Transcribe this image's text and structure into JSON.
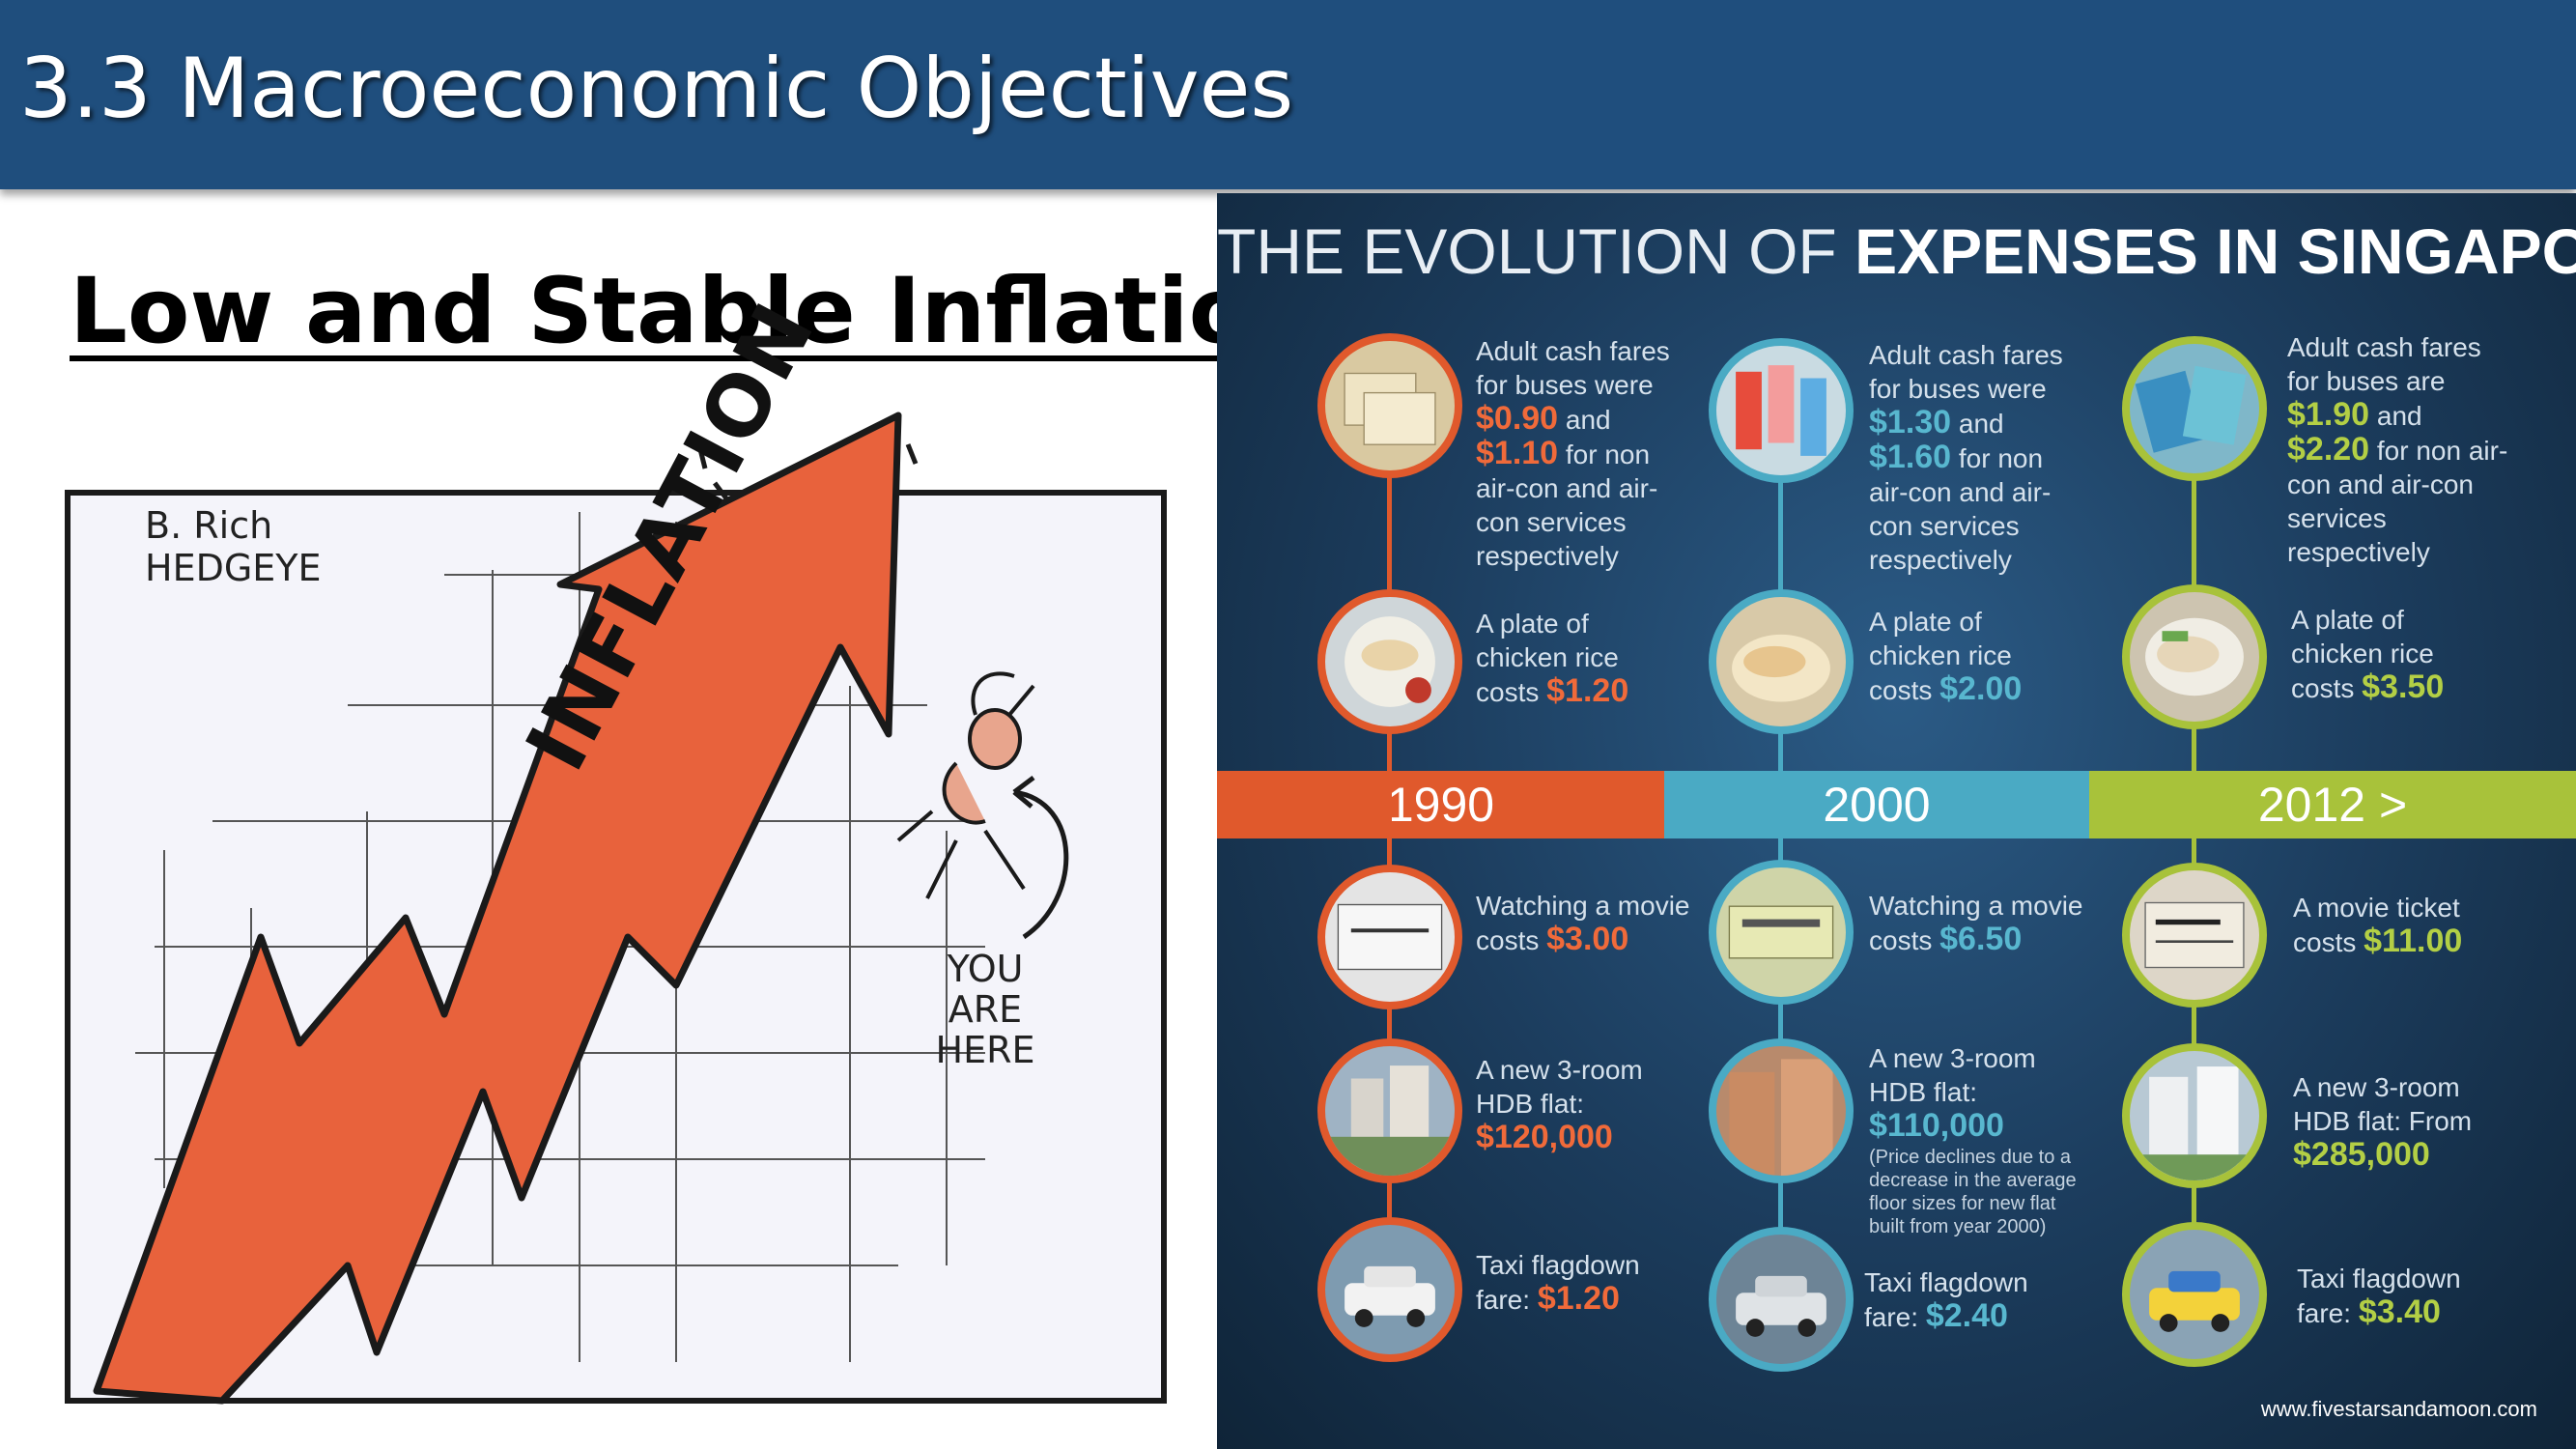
{
  "slide": {
    "title": "3.3 Macroeconomic Objectives",
    "subtitle": "Low and Stable Inflation"
  },
  "cartoon": {
    "signature": "B. Rich",
    "brand": "HEDGEYE",
    "arrow_label": "INFLATION",
    "you_are_here": [
      "YOU",
      "ARE",
      "HERE"
    ]
  },
  "infographic": {
    "title_light": "THE EVOLUTION OF ",
    "title_bold": "EXPENSES IN SINGAPORE",
    "credit": "www.fivestarsandamoon.com",
    "colors": {
      "y1990": "#e0592c",
      "y2000": "#4aaac4",
      "y2012": "#a8c23a"
    },
    "years": [
      {
        "label": "1990",
        "bus": {
          "pre": "Adult cash fares for buses were",
          "v1": "$0.90",
          "mid": " and",
          "v2": "$1.10",
          "post": " for non air-con and air-con services respectively"
        },
        "rice": {
          "pre": "A plate of chicken rice costs ",
          "v": "$1.20"
        },
        "movie": {
          "pre": "Watching a movie costs ",
          "v": "$3.00"
        },
        "hdb": {
          "pre": "A new 3-room HDB flat:",
          "v": "$120,000",
          "note": ""
        },
        "taxi": {
          "pre": "Taxi flagdown fare: ",
          "v": "$1.20"
        }
      },
      {
        "label": "2000",
        "bus": {
          "pre": "Adult cash fares for buses were",
          "v1": "$1.30",
          "mid": " and",
          "v2": "$1.60",
          "post": " for non air-con and air-con services respectively"
        },
        "rice": {
          "pre": "A plate of chicken rice costs ",
          "v": "$2.00"
        },
        "movie": {
          "pre": "Watching a movie costs ",
          "v": "$6.50"
        },
        "hdb": {
          "pre": "A new 3-room HDB flat: ",
          "v": "$110,000",
          "note": "(Price declines due to a decrease in the average floor sizes for new flat built from year 2000)"
        },
        "taxi": {
          "pre": "Taxi flagdown fare: ",
          "v": "$2.40"
        }
      },
      {
        "label": "2012 >",
        "bus": {
          "pre": "Adult cash fares for buses are",
          "v1": "$1.90",
          "mid": " and",
          "v2": "$2.20",
          "post": " for non air-con and air-con services respectively"
        },
        "rice": {
          "pre": "A plate of chicken rice costs ",
          "v": "$3.50"
        },
        "movie": {
          "pre": "A movie ticket costs ",
          "v": "$11.00"
        },
        "hdb": {
          "pre": "A new 3-room HDB flat: From",
          "v": "$285,000",
          "note": ""
        },
        "taxi": {
          "pre": "Taxi flagdown fare: ",
          "v": "$3.40"
        }
      }
    ],
    "icons": [
      "bus-tickets-icon",
      "chicken-rice-icon",
      "movie-ticket-icon",
      "hdb-flat-icon",
      "taxi-icon"
    ]
  }
}
